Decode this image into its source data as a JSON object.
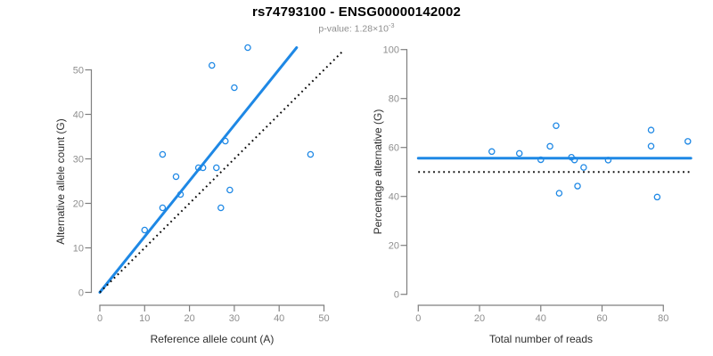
{
  "header": {
    "title": "rs74793100 - ENSG00000142002",
    "subtitle_base": "p-value: 1.28×10",
    "subtitle_exponent": "-3"
  },
  "colors": {
    "accent_blue": "#1e88e5",
    "axis_gray": "#7f7f7f",
    "tick_label_gray": "#8e8e8e",
    "axis_title_dark": "#2e2e2e",
    "identity_black": "#0a0a0a"
  },
  "chart_data": [
    {
      "type": "scatter",
      "title": "",
      "xlabel": "Reference allele count (A)",
      "ylabel": "Alternative allele count (G)",
      "xlim": [
        0,
        52
      ],
      "ylim": [
        0,
        56
      ],
      "xticks": [
        0,
        10,
        20,
        30,
        40,
        50
      ],
      "yticks": [
        0,
        10,
        20,
        30,
        40,
        50
      ],
      "grid": false,
      "legend": "none",
      "points": [
        [
          10,
          14
        ],
        [
          14,
          19
        ],
        [
          14,
          31
        ],
        [
          17,
          26
        ],
        [
          18,
          22
        ],
        [
          22,
          28
        ],
        [
          23,
          28
        ],
        [
          25,
          51
        ],
        [
          26,
          28
        ],
        [
          27,
          19
        ],
        [
          28,
          34
        ],
        [
          29,
          23
        ],
        [
          30,
          46
        ],
        [
          33,
          55
        ],
        [
          47,
          31
        ]
      ],
      "lines": [
        {
          "name": "regression-fit",
          "style": "fit",
          "x1": 0,
          "y1": 0,
          "x2": 43.9,
          "y2": 55.0
        },
        {
          "name": "identity",
          "style": "identity",
          "x1": 0,
          "y1": 0,
          "x2": 54.4,
          "y2": 54.4
        }
      ]
    },
    {
      "type": "scatter",
      "title": "",
      "xlabel": "Total number of reads",
      "ylabel": "Percentage alternative (G)",
      "xlim": [
        0,
        89
      ],
      "ylim": [
        0,
        100
      ],
      "xticks": [
        0,
        20,
        40,
        60,
        80
      ],
      "yticks": [
        0,
        20,
        40,
        60,
        80,
        100
      ],
      "grid": false,
      "legend": "none",
      "points": [
        [
          24,
          58.33
        ],
        [
          33,
          57.58
        ],
        [
          40,
          55.0
        ],
        [
          43,
          60.47
        ],
        [
          45,
          68.89
        ],
        [
          46,
          41.3
        ],
        [
          50,
          56.0
        ],
        [
          51,
          54.9
        ],
        [
          52,
          44.23
        ],
        [
          54,
          51.85
        ],
        [
          62,
          54.84
        ],
        [
          76,
          67.11
        ],
        [
          76,
          60.53
        ],
        [
          78,
          39.74
        ],
        [
          88,
          62.5
        ]
      ],
      "lines": [
        {
          "name": "mean-percentage",
          "style": "fit",
          "x1": 0,
          "y1": 55.62,
          "x2": 89,
          "y2": 55.62
        },
        {
          "name": "fifty-percent-reference",
          "style": "identity",
          "x1": 0,
          "y1": 50,
          "x2": 89,
          "y2": 50
        }
      ]
    }
  ]
}
